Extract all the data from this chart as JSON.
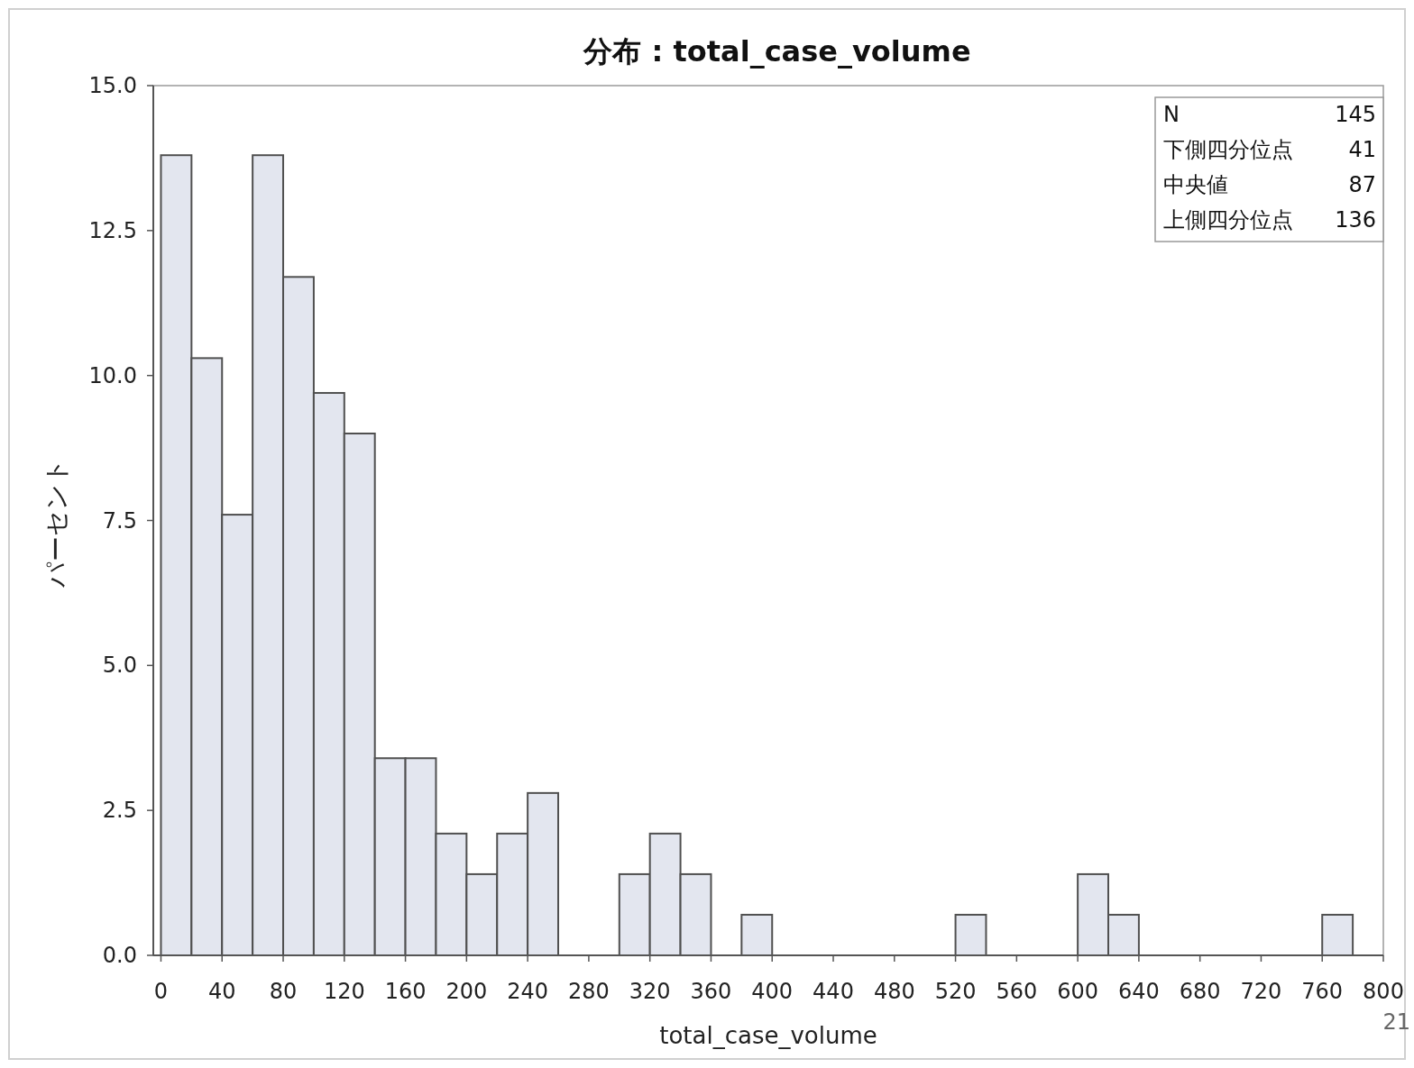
{
  "chart_data": {
    "type": "histogram",
    "title": "分布 : total_case_volume",
    "xlabel": "total_case_volume",
    "ylabel": "パーセント",
    "bins": [
      0,
      20,
      40,
      60,
      80,
      100,
      120,
      140,
      160,
      180,
      200,
      220,
      240,
      260,
      280,
      300,
      320,
      340,
      360,
      380,
      400,
      420,
      440,
      460,
      480,
      500,
      520,
      540,
      560,
      580,
      600,
      620,
      640,
      660,
      680,
      700,
      720,
      740,
      760,
      780
    ],
    "values": [
      13.8,
      10.3,
      7.6,
      13.8,
      11.7,
      9.7,
      9.0,
      3.4,
      3.4,
      2.1,
      1.4,
      2.1,
      2.8,
      0,
      0,
      1.4,
      2.1,
      1.4,
      0,
      0.7,
      0,
      0,
      0,
      0,
      0,
      0,
      0.7,
      0,
      0,
      0,
      1.4,
      0.7,
      0,
      0,
      0,
      0,
      0,
      0,
      0.7
    ],
    "color": "#e3e6ef",
    "xlim": [
      -5,
      800
    ],
    "xticks": [
      0,
      40,
      80,
      120,
      160,
      200,
      240,
      280,
      320,
      360,
      400,
      440,
      480,
      520,
      560,
      600,
      640,
      680,
      720,
      760,
      800
    ],
    "ylim": [
      0,
      15
    ],
    "yticks": [
      {
        "value": 0,
        "label": "0.0"
      },
      {
        "value": 2.5,
        "label": "2.5"
      },
      {
        "value": 5,
        "label": "5.0"
      },
      {
        "value": 7.5,
        "label": "7.5"
      },
      {
        "value": 10,
        "label": "10.0"
      },
      {
        "value": 12.5,
        "label": "12.5"
      },
      {
        "value": 15,
        "label": "15.0"
      }
    ],
    "grid": false,
    "annotations": [
      "N",
      "145",
      "下側四分位点",
      "41",
      "中央値",
      "87",
      "上側四分位点",
      "136",
      "21"
    ]
  }
}
